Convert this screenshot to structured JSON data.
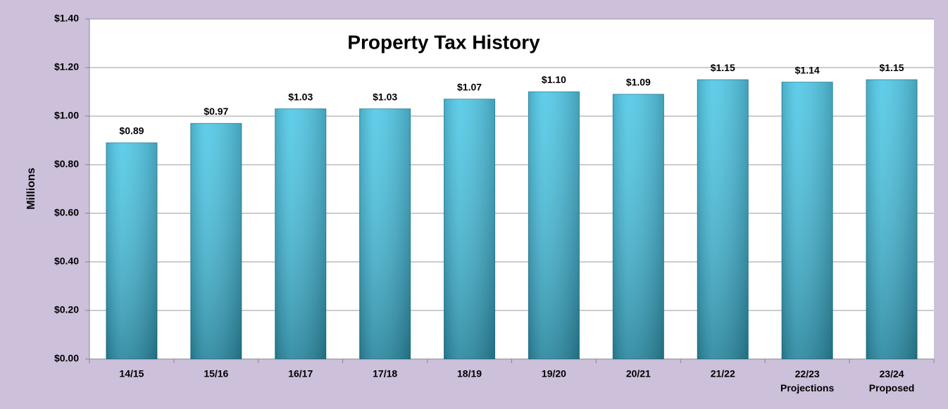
{
  "chart_data": {
    "type": "bar",
    "title": "Property Tax History",
    "y_label": "Millions",
    "categories": [
      "14/15",
      "15/16",
      "16/17",
      "17/18",
      "18/19",
      "19/20",
      "20/21",
      "21/22",
      "22/23\nProjections",
      "23/24\nProposed"
    ],
    "values": [
      0.89,
      0.97,
      1.03,
      1.03,
      1.07,
      1.1,
      1.09,
      1.15,
      1.14,
      1.15
    ],
    "value_labels": [
      "$0.89",
      "$0.97",
      "$1.03",
      "$1.03",
      "$1.07",
      "$1.10",
      "$1.09",
      "$1.15",
      "$1.14",
      "$1.15"
    ],
    "color": "#3cc2e4",
    "ylim": [
      0,
      1.4
    ],
    "yticks": [
      {
        "value": 0,
        "label": "$0.00"
      },
      {
        "value": 0.2,
        "label": "$0.20"
      },
      {
        "value": 0.4,
        "label": "$0.40"
      },
      {
        "value": 0.6,
        "label": "$0.60"
      },
      {
        "value": 0.8,
        "label": "$0.80"
      },
      {
        "value": 1.0,
        "label": "$1.00"
      },
      {
        "value": 1.2,
        "label": "$1.20"
      },
      {
        "value": 1.4,
        "label": "$1.40"
      }
    ],
    "grid": true
  }
}
